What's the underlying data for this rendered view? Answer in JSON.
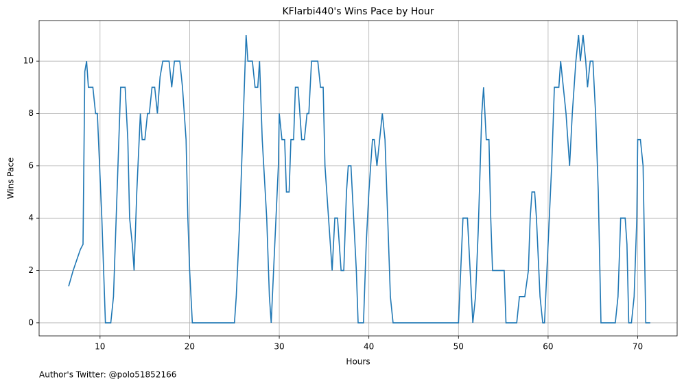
{
  "chart_data": {
    "type": "line",
    "title": "KFlarbi440's Wins Pace by Hour",
    "xlabel": "Hours",
    "ylabel": "Wins Pace",
    "footnote": "Author's Twitter: @polo51852166",
    "x": [
      6.5,
      7.0,
      7.8,
      8.1,
      8.3,
      8.5,
      8.7,
      9.2,
      9.5,
      9.7,
      10.2,
      10.6,
      11.2,
      11.5,
      11.8,
      12.3,
      12.8,
      13.1,
      13.3,
      13.6,
      13.8,
      14.1,
      14.5,
      14.7,
      15.0,
      15.3,
      15.5,
      15.8,
      16.1,
      16.4,
      16.7,
      17.0,
      17.7,
      18.0,
      18.3,
      18.9,
      19.2,
      19.6,
      19.8,
      20.0,
      20.3,
      25.0,
      25.2,
      25.6,
      26.1,
      26.3,
      26.5,
      27.0,
      27.3,
      27.6,
      27.8,
      28.1,
      28.6,
      28.9,
      29.1,
      29.5,
      29.9,
      30.0,
      30.3,
      30.6,
      30.8,
      31.1,
      31.3,
      31.6,
      31.8,
      32.1,
      32.5,
      32.8,
      33.1,
      33.3,
      33.6,
      34.3,
      34.6,
      34.9,
      35.1,
      35.5,
      35.9,
      36.2,
      36.5,
      36.9,
      37.2,
      37.5,
      37.7,
      38.0,
      38.3,
      38.6,
      38.8,
      39.4,
      39.7,
      40.0,
      40.2,
      40.4,
      40.6,
      40.9,
      41.2,
      41.5,
      41.8,
      42.1,
      42.4,
      42.7,
      50.0,
      50.5,
      51.0,
      51.3,
      51.6,
      51.9,
      52.2,
      52.6,
      52.8,
      53.1,
      53.4,
      53.6,
      53.8,
      54.1,
      55.1,
      55.3,
      56.5,
      56.8,
      57.4,
      57.8,
      58.0,
      58.2,
      58.5,
      58.7,
      59.1,
      59.4,
      59.6,
      60.0,
      60.4,
      60.7,
      61.2,
      61.4,
      61.7,
      62.0,
      62.4,
      62.7,
      63.1,
      63.4,
      63.6,
      63.9,
      64.2,
      64.4,
      64.7,
      65.0,
      65.3,
      65.6,
      65.9,
      67.5,
      67.8,
      68.1,
      68.6,
      68.8,
      69.0,
      69.3,
      69.6,
      69.9,
      70.0,
      70.3,
      70.6,
      70.9,
      71.4
    ],
    "series": [
      {
        "name": "Wins Pace",
        "color": "#1f77b4",
        "values": [
          1.4,
          2,
          2.8,
          3,
          9.6,
          10,
          9,
          9,
          8,
          8,
          4,
          0,
          0,
          1,
          4,
          9,
          9,
          7,
          4,
          3,
          2,
          5,
          8,
          7,
          7,
          8,
          8,
          9,
          9,
          8,
          9.4,
          10,
          10,
          9,
          10,
          10,
          9,
          7,
          4,
          2,
          0,
          0,
          1,
          4,
          9,
          11,
          10,
          10,
          9,
          9,
          10,
          7,
          4,
          1,
          0,
          3,
          6,
          8,
          7,
          7,
          5,
          5,
          7,
          7,
          9,
          9,
          7,
          7,
          8,
          8,
          10,
          10,
          9,
          9,
          6,
          4,
          2,
          4,
          4,
          2,
          2,
          5,
          6,
          6,
          4,
          2,
          0,
          0,
          3,
          5,
          6,
          7,
          7,
          6,
          7,
          8,
          7,
          4,
          1,
          0,
          0,
          4,
          4,
          2,
          0,
          1,
          3.5,
          8,
          9,
          7,
          7,
          4,
          2,
          2,
          2,
          0,
          0,
          1,
          1,
          2,
          4,
          5,
          5,
          4,
          1,
          0,
          0,
          3,
          6,
          9,
          9,
          10,
          9,
          8,
          6,
          8,
          10,
          11,
          10,
          11,
          10,
          9,
          10,
          10,
          8,
          5,
          0,
          0,
          1,
          4,
          4,
          3,
          0,
          0,
          1,
          4,
          7,
          7,
          6,
          0,
          0
        ]
      }
    ],
    "xlim": [
      3.2,
      74.4
    ],
    "ylim": [
      -0.5,
      11.55
    ],
    "xticks": [
      10,
      20,
      30,
      40,
      50,
      60,
      70
    ],
    "yticks": [
      0,
      2,
      4,
      6,
      8,
      10
    ],
    "grid": true
  }
}
